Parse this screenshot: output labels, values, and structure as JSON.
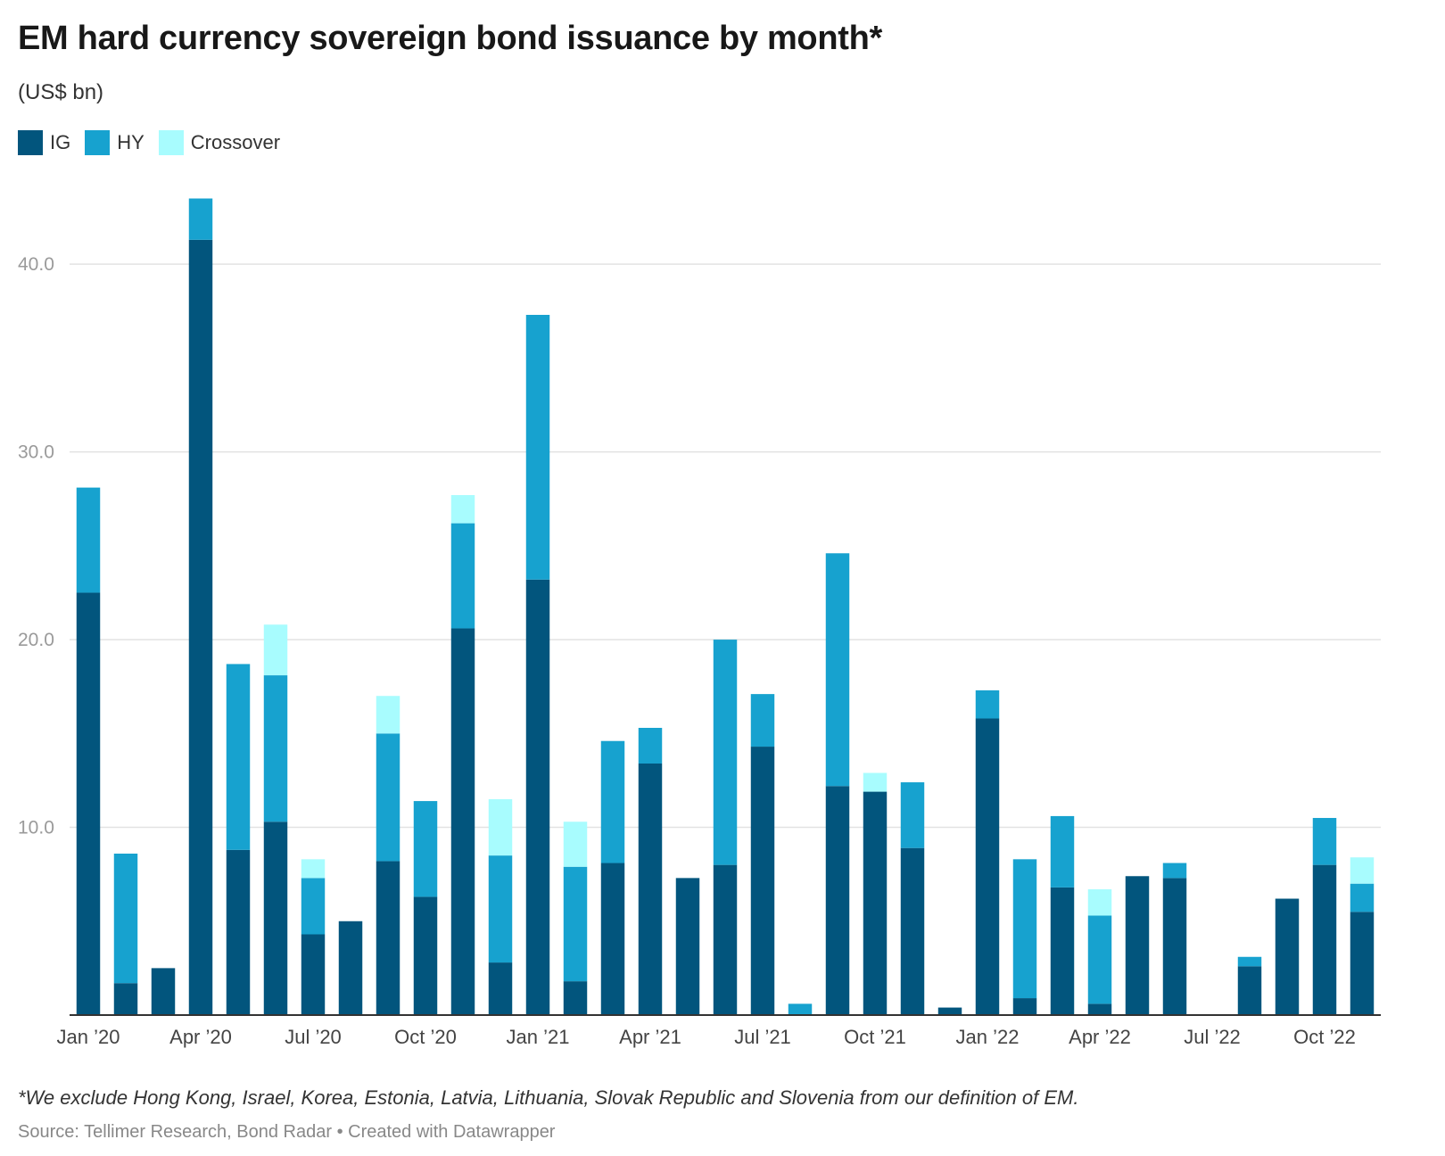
{
  "chart_data": {
    "type": "bar",
    "stacked": true,
    "title": "EM hard currency sovereign bond issuance by month*",
    "subtitle": "(US$ bn)",
    "note": "*We exclude Hong Kong, Israel, Korea, Estonia, Latvia, Lithuania, Slovak Republic and Slovenia from our definition of EM.",
    "source": "Source: Tellimer Research, Bond Radar • Created with Datawrapper",
    "legend_position": "top-left",
    "grid": true,
    "ylim": [
      0,
      44
    ],
    "yticks": [
      "10.0",
      "20.0",
      "30.0",
      "40.0"
    ],
    "ytick_values": [
      10,
      20,
      30,
      40
    ],
    "categories": [
      "Jan '20",
      "Feb '20",
      "Mar '20",
      "Apr '20",
      "May '20",
      "Jun '20",
      "Jul '20",
      "Aug '20",
      "Sep '20",
      "Oct '20",
      "Nov '20",
      "Dec '20",
      "Jan '21",
      "Feb '21",
      "Mar '21",
      "Apr '21",
      "May '21",
      "Jun '21",
      "Jul '21",
      "Aug '21",
      "Sep '21",
      "Oct '21",
      "Nov '21",
      "Dec '21",
      "Jan '22",
      "Feb '22",
      "Mar '22",
      "Apr '22",
      "May '22",
      "Jun '22",
      "Jul '22",
      "Aug '22",
      "Sep '22",
      "Oct '22",
      "Nov '22"
    ],
    "xtick_labels": [
      {
        "index": 0,
        "label": "Jan ’20"
      },
      {
        "index": 3,
        "label": "Apr ’20"
      },
      {
        "index": 6,
        "label": "Jul ’20"
      },
      {
        "index": 9,
        "label": "Oct ’20"
      },
      {
        "index": 12,
        "label": "Jan ’21"
      },
      {
        "index": 15,
        "label": "Apr ’21"
      },
      {
        "index": 18,
        "label": "Jul ’21"
      },
      {
        "index": 21,
        "label": "Oct ’21"
      },
      {
        "index": 24,
        "label": "Jan ’22"
      },
      {
        "index": 27,
        "label": "Apr ’22"
      },
      {
        "index": 30,
        "label": "Jul ’22"
      },
      {
        "index": 33,
        "label": "Oct ’22"
      }
    ],
    "series": [
      {
        "name": "IG",
        "color": "#02557d",
        "values": [
          22.5,
          1.7,
          2.5,
          41.3,
          8.8,
          10.3,
          4.3,
          5.0,
          8.2,
          6.3,
          20.6,
          2.8,
          23.2,
          1.8,
          8.1,
          13.4,
          7.3,
          8.0,
          14.3,
          0.0,
          12.2,
          11.9,
          8.9,
          0.4,
          15.8,
          0.9,
          6.8,
          0.6,
          7.4,
          7.3,
          0.0,
          2.6,
          6.2,
          8.0,
          5.5
        ]
      },
      {
        "name": "HY",
        "color": "#17a2cf",
        "values": [
          5.6,
          6.9,
          0.0,
          2.2,
          9.9,
          7.8,
          3.0,
          0.0,
          6.8,
          5.1,
          5.6,
          5.7,
          14.1,
          6.1,
          6.5,
          1.9,
          0.0,
          12.0,
          2.8,
          0.6,
          12.4,
          0.0,
          3.5,
          0.0,
          1.5,
          7.4,
          3.8,
          4.7,
          0.0,
          0.8,
          0.0,
          0.5,
          0.0,
          2.5,
          1.5
        ]
      },
      {
        "name": "Crossover",
        "color": "#a8fcfe",
        "values": [
          0.0,
          0.0,
          0.0,
          0.0,
          0.0,
          2.7,
          1.0,
          0.0,
          2.0,
          0.0,
          1.5,
          3.0,
          0.0,
          2.4,
          0.0,
          0.0,
          0.0,
          0.0,
          0.0,
          0.0,
          0.0,
          1.0,
          0.0,
          0.0,
          0.0,
          0.0,
          0.0,
          1.4,
          0.0,
          0.0,
          0.0,
          0.0,
          0.0,
          0.0,
          1.4
        ]
      }
    ]
  }
}
